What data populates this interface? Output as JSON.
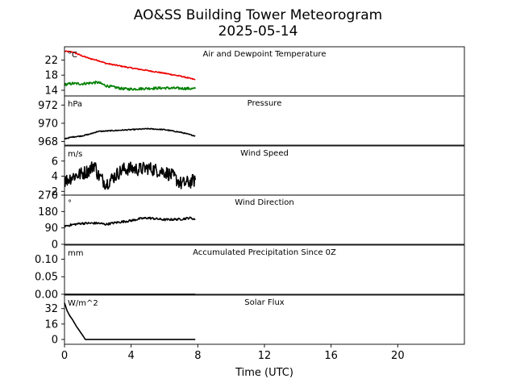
{
  "figure": {
    "title": "AO&SS Building Tower Meteorogram",
    "subtitle": "2025-05-14"
  },
  "colors": {
    "air": "#ee0000",
    "dew": "#008000",
    "line": "#000000"
  },
  "chart_data": {
    "type": "line",
    "xlabel": "Time (UTC)",
    "xlim": [
      0,
      24
    ],
    "xticks": [
      "0",
      "4",
      "8",
      "12",
      "16",
      "20"
    ],
    "panels": [
      {
        "title": "Air and Dewpoint Temperature",
        "unit": "°C",
        "ylim": [
          12.5,
          25.5
        ],
        "yticks": [
          "14",
          "18",
          "22"
        ],
        "series": [
          {
            "color": "#ee0000",
            "noise": 0.15,
            "points": [
              [
                0,
                24.3
              ],
              [
                0.5,
                24.1
              ],
              [
                1,
                23.2
              ],
              [
                1.5,
                22.4
              ],
              [
                2,
                21.9
              ],
              [
                2.5,
                21.1
              ],
              [
                3,
                20.7
              ],
              [
                4,
                19.9
              ],
              [
                5,
                19.2
              ],
              [
                6,
                18.5
              ],
              [
                7,
                17.7
              ],
              [
                7.85,
                16.8
              ]
            ]
          },
          {
            "color": "#008000",
            "noise": 0.35,
            "points": [
              [
                0,
                15.5
              ],
              [
                0.5,
                15.8
              ],
              [
                1,
                15.7
              ],
              [
                1.5,
                15.9
              ],
              [
                2,
                16.1
              ],
              [
                2.5,
                15.2
              ],
              [
                3,
                14.8
              ],
              [
                3.5,
                14.4
              ],
              [
                4,
                14.3
              ],
              [
                5,
                14.5
              ],
              [
                6,
                14.6
              ],
              [
                7,
                14.5
              ],
              [
                7.85,
                14.4
              ]
            ]
          }
        ]
      },
      {
        "title": "Pressure",
        "unit": "hPa",
        "ylim": [
          967.6,
          973.0
        ],
        "yticks": [
          "968",
          "970",
          "972"
        ],
        "series": [
          {
            "color": "#000000",
            "noise": 0.05,
            "points": [
              [
                0,
                968.3
              ],
              [
                0.5,
                968.5
              ],
              [
                1,
                968.6
              ],
              [
                1.5,
                968.8
              ],
              [
                2,
                969.1
              ],
              [
                3,
                969.2
              ],
              [
                4,
                969.3
              ],
              [
                5,
                969.4
              ],
              [
                6,
                969.3
              ],
              [
                7,
                969.0
              ],
              [
                7.85,
                968.6
              ]
            ]
          }
        ]
      },
      {
        "title": "Wind Speed",
        "unit": "m/s",
        "ylim": [
          1.5,
          8.0
        ],
        "yticks": [
          "2",
          "4",
          "6"
        ],
        "series": [
          {
            "color": "#000000",
            "noise": 0.9,
            "points": [
              [
                0,
                3.3
              ],
              [
                0.5,
                4.0
              ],
              [
                1,
                4.3
              ],
              [
                1.5,
                4.8
              ],
              [
                1.8,
                5.6
              ],
              [
                2,
                4.2
              ],
              [
                2.5,
                3.0
              ],
              [
                3,
                4.0
              ],
              [
                3.5,
                4.9
              ],
              [
                4,
                5.0
              ],
              [
                4.5,
                4.9
              ],
              [
                5,
                5.1
              ],
              [
                5.5,
                4.8
              ],
              [
                6,
                4.6
              ],
              [
                6.5,
                4.0
              ],
              [
                7,
                3.0
              ],
              [
                7.5,
                3.2
              ],
              [
                7.85,
                3.5
              ]
            ]
          }
        ]
      },
      {
        "title": "Wind Direction",
        "unit": "°",
        "ylim": [
          0,
          270
        ],
        "yticks": [
          "0",
          "90",
          "180",
          "270"
        ],
        "series": [
          {
            "color": "#000000",
            "noise": 6,
            "points": [
              [
                0,
                100
              ],
              [
                0.5,
                108
              ],
              [
                1,
                115
              ],
              [
                2,
                116
              ],
              [
                2.5,
                110
              ],
              [
                3,
                118
              ],
              [
                4,
                130
              ],
              [
                4.5,
                140
              ],
              [
                5,
                145
              ],
              [
                5.5,
                140
              ],
              [
                6,
                135
              ],
              [
                7,
                138
              ],
              [
                7.5,
                145
              ],
              [
                7.85,
                138
              ]
            ]
          }
        ]
      },
      {
        "title": "Accumulated Precipitation Since 0Z",
        "unit": "mm",
        "ylim": [
          0,
          0.14
        ],
        "yticks": [
          "0.00",
          "0.05",
          "0.10"
        ],
        "series": [
          {
            "color": "#000000",
            "noise": 0,
            "points": [
              [
                0,
                0
              ],
              [
                7.85,
                0
              ]
            ]
          }
        ]
      },
      {
        "title": "Solar Flux",
        "unit": "W/m^2",
        "ylim": [
          -5,
          46
        ],
        "yticks": [
          "0",
          "16",
          "32"
        ],
        "series": [
          {
            "color": "#000000",
            "noise": 0,
            "points": [
              [
                0,
                38
              ],
              [
                0.15,
                30
              ],
              [
                0.3,
                25
              ],
              [
                0.5,
                20
              ],
              [
                0.7,
                14
              ],
              [
                0.9,
                9
              ],
              [
                1.1,
                4
              ],
              [
                1.25,
                0
              ],
              [
                2,
                0
              ],
              [
                4,
                0
              ],
              [
                6,
                0
              ],
              [
                7.85,
                0
              ]
            ]
          }
        ]
      }
    ]
  }
}
